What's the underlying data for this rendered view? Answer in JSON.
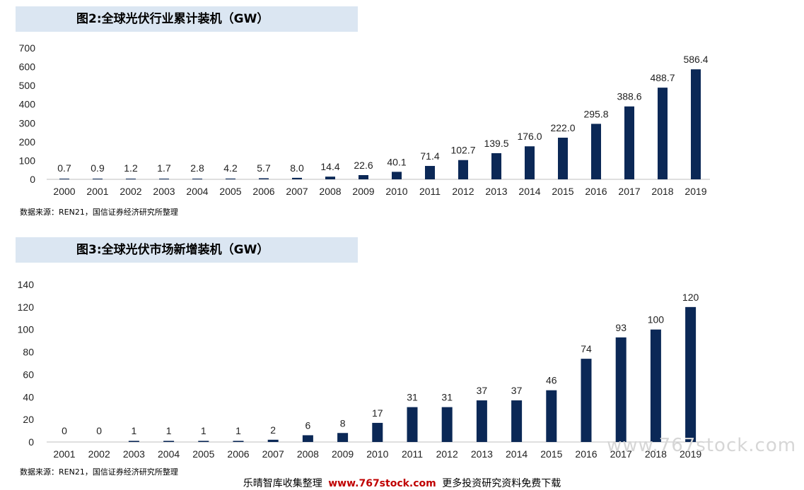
{
  "figure1": {
    "title": "图2:全球光伏行业累计装机（GW）",
    "source": "数据来源：REN21，国信证券经济研究所整理"
  },
  "figure2": {
    "title": "图3:全球光伏市场新增装机（GW）",
    "source": "数据来源：REN21，国信证券经济研究所整理"
  },
  "footer": {
    "prefix": "乐晴智库收集整理",
    "site": "www.767stock.com",
    "suffix": "更多投资研究资料免费下载"
  },
  "watermark": "www.767stock.com",
  "colors": {
    "bar": "#0b2856",
    "title_bg": "#dbe6f2",
    "site": "#c00000"
  },
  "chart_data": [
    {
      "type": "bar",
      "title": "图2:全球光伏行业累计装机（GW）",
      "categories": [
        "2000",
        "2001",
        "2002",
        "2003",
        "2004",
        "2005",
        "2006",
        "2007",
        "2008",
        "2009",
        "2010",
        "2011",
        "2012",
        "2013",
        "2014",
        "2015",
        "2016",
        "2017",
        "2018",
        "2019"
      ],
      "values": [
        0.7,
        0.9,
        1.2,
        1.7,
        2.8,
        4.2,
        5.7,
        8.0,
        14.4,
        22.6,
        40.1,
        71.4,
        102.7,
        139.5,
        176.0,
        222.0,
        295.8,
        388.6,
        488.7,
        586.4
      ],
      "labels": [
        "0.7",
        "0.9",
        "1.2",
        "1.7",
        "2.8",
        "4.2",
        "5.7",
        "8.0",
        "14.4",
        "22.6",
        "40.1",
        "71.4",
        "102.7",
        "139.5",
        "176.0",
        "222.0",
        "295.8",
        "388.6",
        "488.7",
        "586.4"
      ],
      "ylim": [
        0,
        700
      ],
      "yticks": [
        0,
        100,
        200,
        300,
        400,
        500,
        600,
        700
      ],
      "grid": false
    },
    {
      "type": "bar",
      "title": "图3:全球光伏市场新增装机（GW）",
      "categories": [
        "2001",
        "2002",
        "2003",
        "2004",
        "2005",
        "2006",
        "2007",
        "2008",
        "2009",
        "2010",
        "2011",
        "2012",
        "2013",
        "2014",
        "2015",
        "2016",
        "2017",
        "2018",
        "2019"
      ],
      "values": [
        0,
        0,
        1,
        1,
        1,
        1,
        2,
        6,
        8,
        17,
        31,
        31,
        37,
        37,
        46,
        74,
        93,
        100,
        120
      ],
      "labels": [
        "0",
        "0",
        "1",
        "1",
        "1",
        "1",
        "2",
        "6",
        "8",
        "17",
        "31",
        "31",
        "37",
        "37",
        "46",
        "74",
        "93",
        "100",
        "120"
      ],
      "ylim": [
        0,
        140
      ],
      "yticks": [
        0,
        20,
        40,
        60,
        80,
        100,
        120,
        140
      ],
      "grid": false
    }
  ]
}
